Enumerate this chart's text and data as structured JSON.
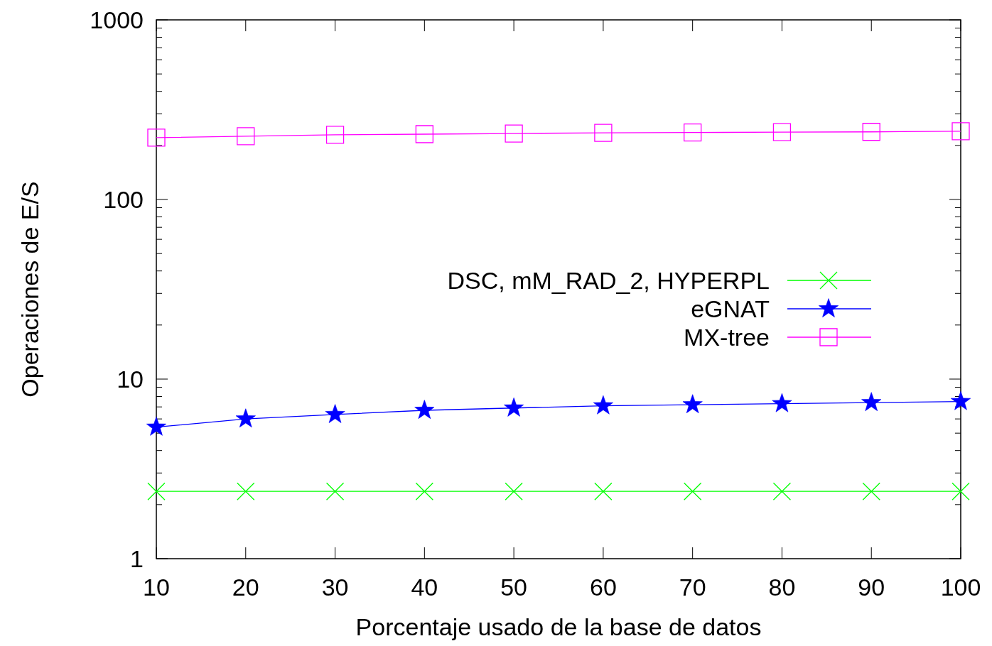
{
  "chart_data": {
    "type": "line",
    "xlabel": "Porcentaje usado de la base de datos",
    "ylabel": "Operaciones de E/S",
    "x": [
      10,
      20,
      30,
      40,
      50,
      60,
      70,
      80,
      90,
      100
    ],
    "xlim": [
      10,
      100
    ],
    "xticks": [
      10,
      20,
      30,
      40,
      50,
      60,
      70,
      80,
      90,
      100
    ],
    "ylim": [
      1,
      1000
    ],
    "yticks": [
      1,
      10,
      100,
      1000
    ],
    "log": "y",
    "grid": false,
    "legend": "right",
    "series": [
      {
        "name": "DSC, mM_RAD_2, HYPERPL",
        "color": "#00ff00",
        "marker": "cross",
        "values": [
          2.37,
          2.37,
          2.37,
          2.37,
          2.37,
          2.37,
          2.37,
          2.37,
          2.37,
          2.37
        ]
      },
      {
        "name": "eGNAT",
        "color": "#0000ff",
        "marker": "star",
        "values": [
          5.4,
          6.0,
          6.35,
          6.7,
          6.9,
          7.1,
          7.2,
          7.3,
          7.4,
          7.5
        ]
      },
      {
        "name": "MX-tree",
        "color": "#ff00ff",
        "marker": "square",
        "values": [
          221,
          225,
          229,
          231,
          233,
          235,
          236,
          237,
          238,
          240
        ]
      }
    ]
  }
}
